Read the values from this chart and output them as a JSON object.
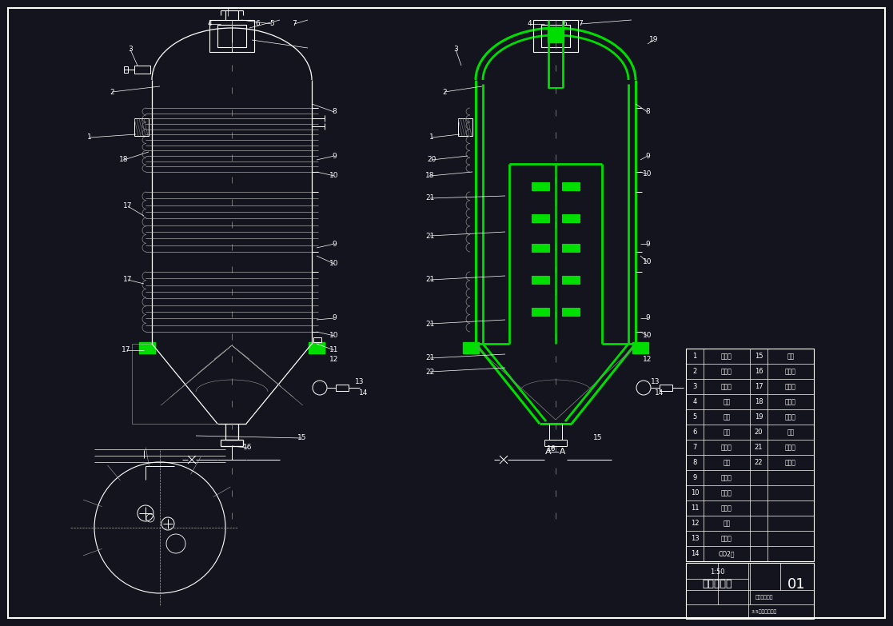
{
  "bg_color": "#14141e",
  "line_color": "#ffffff",
  "green_color": "#00dd00",
  "dim_color": "#aaaaaa",
  "drawing_no": "01",
  "scale": "1:50",
  "legend_data": [
    [
      "1",
      "保温层",
      "15",
      "裙座"
    ],
    [
      "2",
      "顶封头",
      "16",
      "排污管"
    ],
    [
      "3",
      "洗涤球",
      "17",
      "冷却带"
    ],
    [
      "4",
      "人孔",
      "18",
      "视镜灯"
    ],
    [
      "5",
      "液位",
      "19",
      "压力表"
    ],
    [
      "6",
      "正压",
      "20",
      "顶平"
    ],
    [
      "7",
      "补料口",
      "21",
      "分流环"
    ],
    [
      "8",
      "封头",
      "22",
      "喷水环"
    ],
    [
      "9",
      "冷却一",
      "",
      ""
    ],
    [
      "10",
      "冷却二",
      "",
      ""
    ],
    [
      "11",
      "大样框",
      "",
      ""
    ],
    [
      "12",
      "地脚",
      "",
      ""
    ],
    [
      "13",
      "排液管",
      "",
      ""
    ],
    [
      "14",
      "CO2管",
      "",
      ""
    ]
  ]
}
